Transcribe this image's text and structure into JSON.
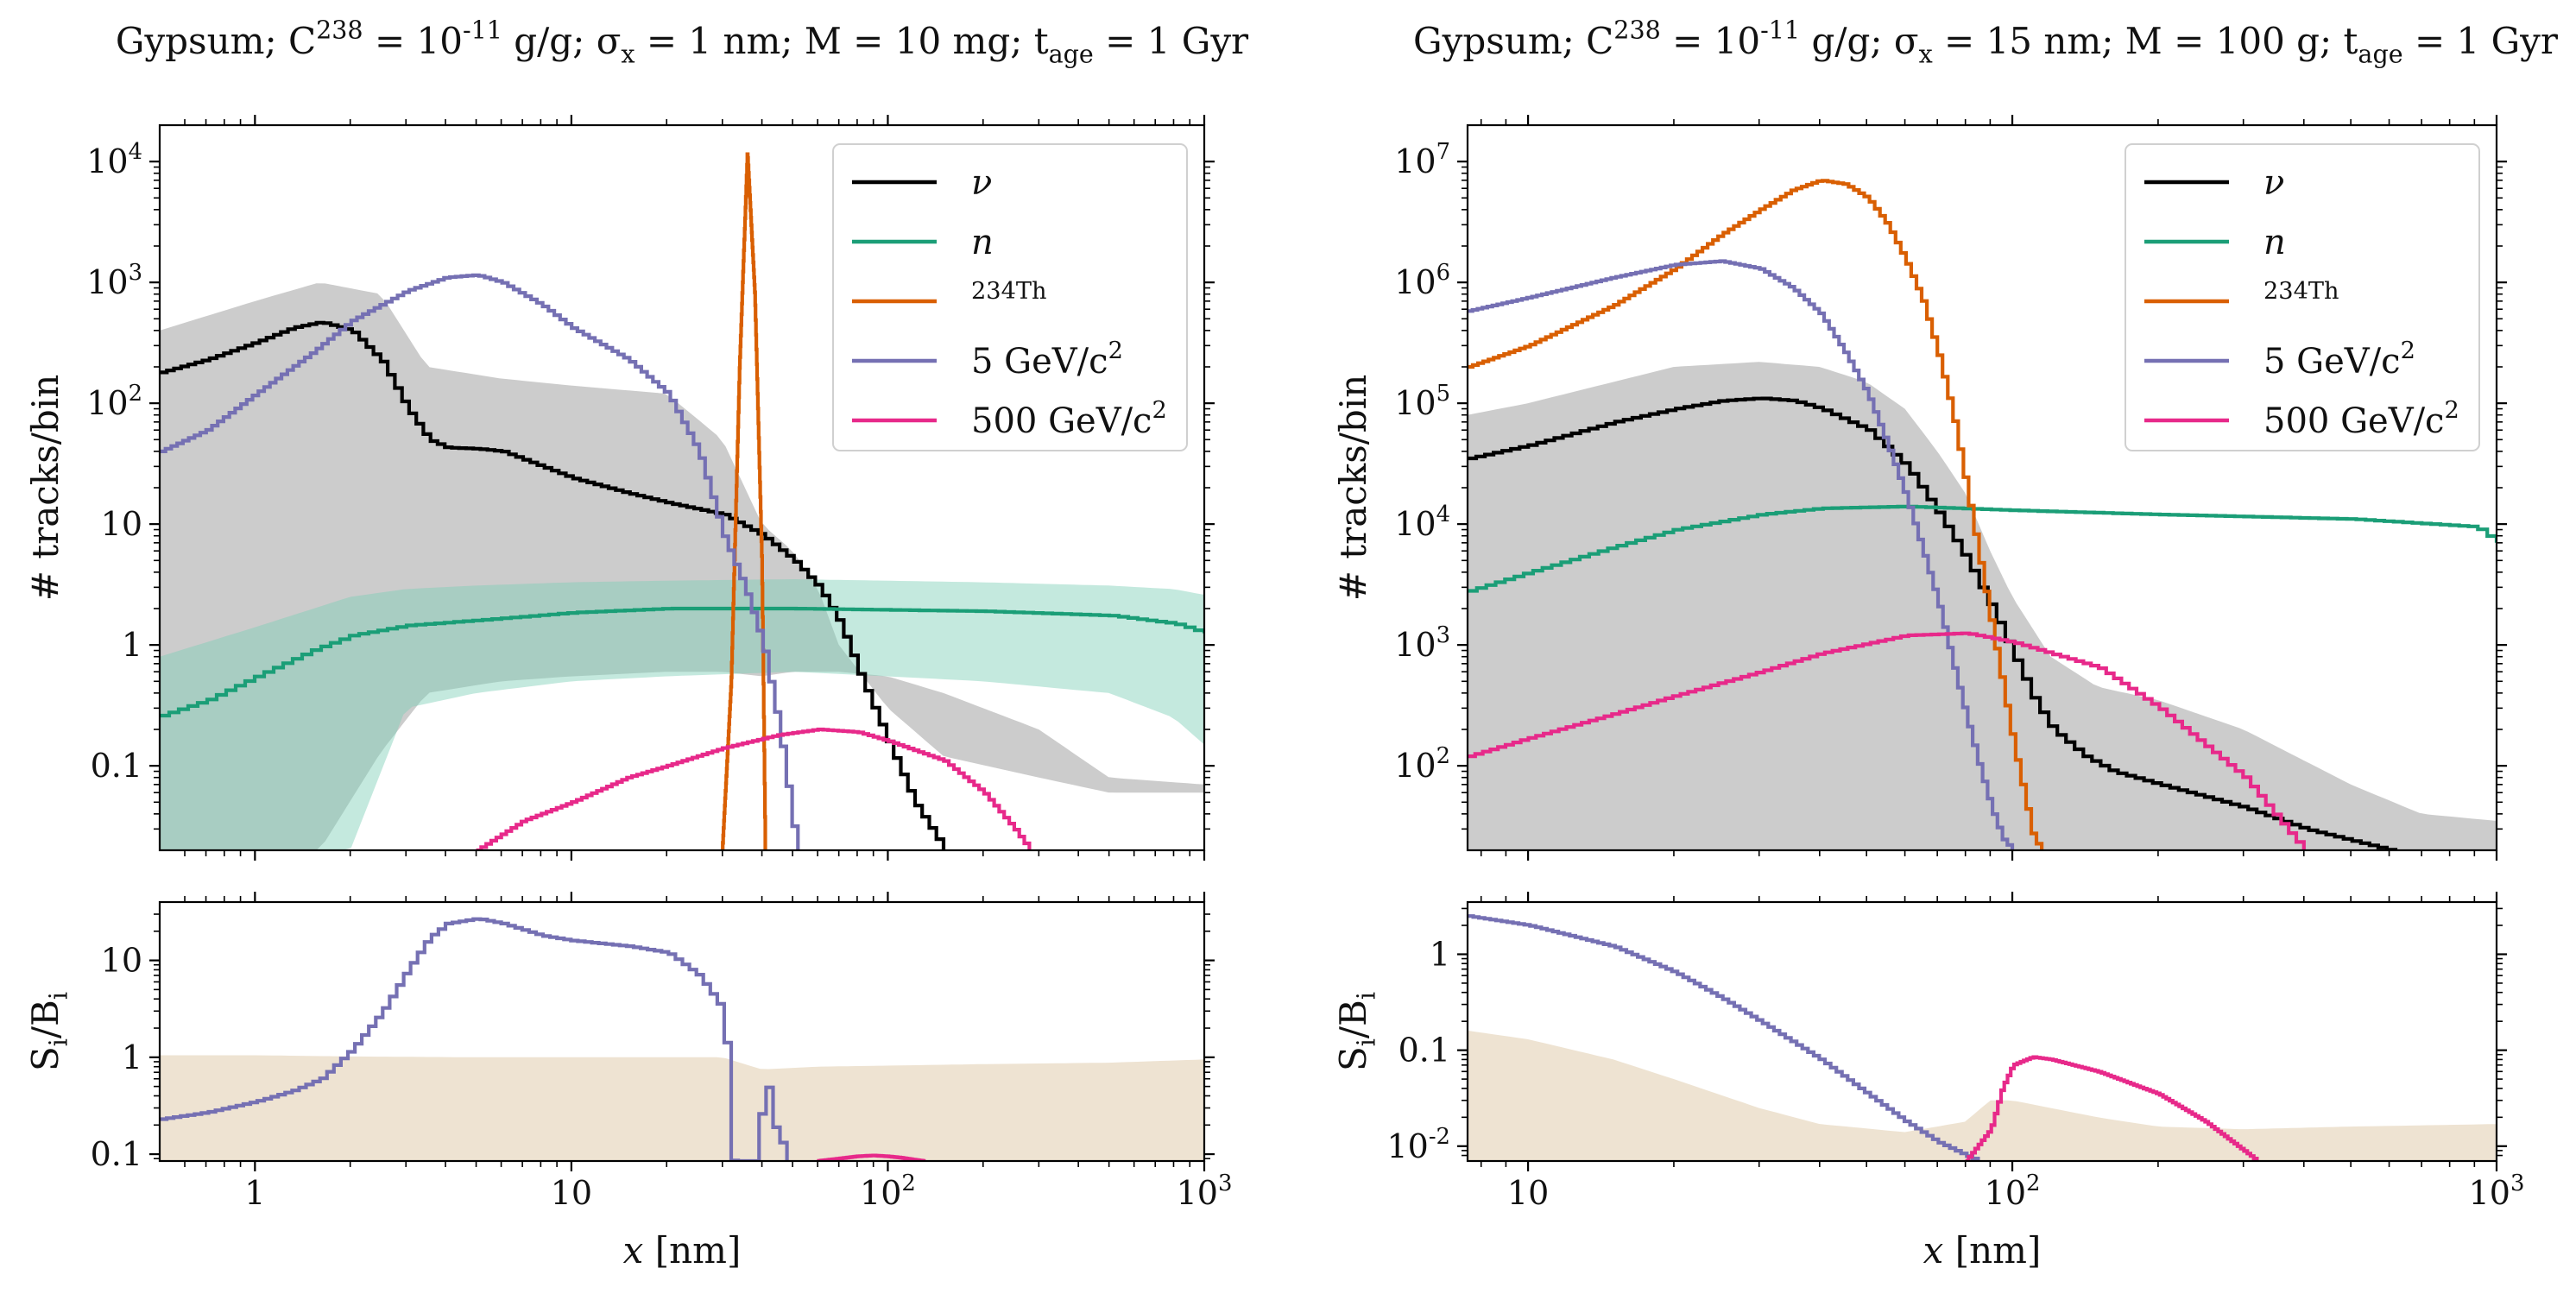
{
  "chart_data": [
    {
      "id": "left",
      "type": "line",
      "title": "Gypsum; C^238 = 10^-11 g/g; σ_x = 1 nm; M = 10 mg; t_age = 1 Gyr",
      "xscale": "log",
      "xlim": [
        0.5,
        1000
      ],
      "xlabel": "x [nm]",
      "x_ticks": [
        1,
        10,
        100,
        1000
      ],
      "x_tick_labels": [
        "1",
        "10",
        "10^2",
        "10^3"
      ],
      "top": {
        "ylabel": "# tracks/bin",
        "yscale": "log",
        "ylim": [
          0.02,
          20000
        ],
        "y_ticks": [
          0.1,
          1,
          10,
          100,
          1000,
          10000
        ],
        "y_tick_labels": [
          "0.1",
          "1",
          "10",
          "10^2",
          "10^3",
          "10^4"
        ],
        "legend_position": "top-right",
        "bands": [
          {
            "name": "ν uncertainty",
            "color": "#c9c9c9",
            "x": [
              0.5,
              1,
              1.6,
              2.5,
              3.5,
              6,
              10,
              20,
              30,
              40,
              50,
              60,
              70,
              100,
              150,
              300,
              500,
              1000
            ],
            "lower": [
              0.02,
              0.02,
              0.02,
              0.13,
              0.4,
              0.5,
              0.55,
              0.6,
              0.6,
              0.55,
              0.6,
              0.6,
              0.6,
              0.55,
              0.4,
              0.2,
              0.08,
              0.07
            ],
            "upper": [
              400,
              700,
              1000,
              800,
              200,
              160,
              140,
              120,
              50,
              10,
              6,
              3,
              1,
              0.3,
              0.12,
              0.08,
              0.06,
              0.06
            ]
          },
          {
            "name": "n uncertainty",
            "color": "#7ccfb5",
            "x": [
              0.5,
              1,
              2,
              3,
              5,
              10,
              20,
              50,
              100,
              200,
              500,
              800,
              1000
            ],
            "lower": [
              0.02,
              0.02,
              0.02,
              0.3,
              0.4,
              0.5,
              0.55,
              0.6,
              0.55,
              0.5,
              0.4,
              0.25,
              0.15
            ],
            "upper": [
              0.8,
              1.4,
              2.5,
              2.9,
              3.1,
              3.3,
              3.4,
              3.5,
              3.4,
              3.3,
              3.1,
              2.9,
              2.6
            ]
          }
        ],
        "series": [
          {
            "name": "ν",
            "color": "#000000",
            "x": [
              0.5,
              0.7,
              1,
              1.3,
              1.6,
              2,
              2.5,
              3,
              3.5,
              4,
              5,
              6,
              8,
              10,
              15,
              20,
              30,
              40,
              50,
              60,
              70,
              80,
              100,
              120,
              150
            ],
            "y": [
              180,
              230,
              320,
              420,
              470,
              400,
              220,
              90,
              50,
              43,
              42,
              40,
              30,
              24,
              18,
              15,
              12,
              8,
              5,
              3,
              1.5,
              0.6,
              0.15,
              0.05,
              0.02
            ]
          },
          {
            "name": "n",
            "color": "#1b9e77",
            "x": [
              0.5,
              0.7,
              1,
              1.5,
              2,
              3,
              5,
              10,
              20,
              50,
              100,
              200,
              500,
              800,
              1000
            ],
            "y": [
              0.26,
              0.35,
              0.55,
              0.9,
              1.2,
              1.45,
              1.6,
              1.85,
              2.0,
              2.0,
              1.95,
              1.9,
              1.75,
              1.5,
              1.25
            ]
          },
          {
            "name": "^234Th",
            "color": "#d95f02",
            "x": [
              30,
              32,
              34,
              36,
              38,
              40,
              41
            ],
            "y": [
              0.02,
              0.5,
              200,
              12000,
              800,
              5,
              0.02
            ]
          },
          {
            "name": "5 GeV/c^2",
            "color": "#7570b3",
            "x": [
              0.5,
              0.7,
              1,
              1.5,
              2,
              3,
              4,
              5,
              6,
              8,
              10,
              15,
              20,
              25,
              30,
              35,
              40,
              45,
              50,
              52
            ],
            "y": [
              40,
              60,
              120,
              260,
              480,
              850,
              1100,
              1150,
              1000,
              650,
              420,
              230,
              120,
              40,
              8,
              3,
              1,
              0.2,
              0.03,
              0.02
            ]
          },
          {
            "name": "500 GeV/c^2",
            "color": "#e7298a",
            "x": [
              5,
              7,
              10,
              15,
              20,
              30,
              45,
              60,
              80,
              100,
              150,
              200,
              250,
              280
            ],
            "y": [
              0.02,
              0.035,
              0.05,
              0.08,
              0.1,
              0.14,
              0.18,
              0.2,
              0.19,
              0.16,
              0.11,
              0.06,
              0.03,
              0.02
            ]
          }
        ]
      },
      "bottom": {
        "ylabel": "S_i/B_i",
        "yscale": "log",
        "ylim": [
          0.085,
          40
        ],
        "y_ticks": [
          0.1,
          1,
          10
        ],
        "y_tick_labels": [
          "0.1",
          "1",
          "10"
        ],
        "bands": [
          {
            "name": "background ratio",
            "color": "#eee3d2",
            "x": [
              0.5,
              1,
              2,
              5,
              10,
              20,
              30,
              40,
              60,
              100,
              200,
              500,
              1000
            ],
            "upper": [
              1.05,
              1.05,
              1.02,
              1.0,
              1.0,
              1.0,
              1.0,
              0.75,
              0.8,
              0.82,
              0.85,
              0.88,
              0.95
            ]
          }
        ],
        "series": [
          {
            "name": "5 GeV/c^2",
            "color": "#7570b3",
            "x": [
              0.5,
              0.7,
              1,
              1.3,
              1.6,
              2,
              2.5,
              3,
              3.5,
              4,
              5,
              6,
              8,
              10,
              15,
              20,
              25,
              30,
              32,
              34,
              38,
              40,
              41,
              43,
              45,
              47,
              48
            ],
            "y": [
              0.23,
              0.27,
              0.35,
              0.45,
              0.6,
              1.2,
              3.0,
              8.0,
              17.0,
              24.0,
              27.0,
              24.0,
              18.0,
              16.0,
              14.0,
              12.0,
              7.0,
              3.0,
              0.085,
              0.085,
              0.085,
              0.55,
              0.55,
              0.2,
              0.15,
              0.1,
              0.085
            ]
          },
          {
            "name": "500 GeV/c^2",
            "color": "#e7298a",
            "x": [
              60,
              70,
              80,
              90,
              100,
              110,
              120,
              130
            ],
            "y": [
              0.085,
              0.09,
              0.095,
              0.097,
              0.095,
              0.092,
              0.088,
              0.085
            ]
          }
        ]
      }
    },
    {
      "id": "right",
      "type": "line",
      "title": "Gypsum; C^238 = 10^-11 g/g; σ_x = 15 nm; M = 100 g; t_age = 1 Gyr",
      "xscale": "log",
      "xlim": [
        7.5,
        1000
      ],
      "xlabel": "x [nm]",
      "x_ticks": [
        10,
        100,
        1000
      ],
      "x_tick_labels": [
        "10",
        "10^2",
        "10^3"
      ],
      "top": {
        "ylabel": "# tracks/bin",
        "yscale": "log",
        "ylim": [
          20,
          20000000
        ],
        "y_ticks": [
          100,
          1000,
          10000,
          100000,
          1000000,
          10000000
        ],
        "y_tick_labels": [
          "10^2",
          "10^3",
          "10^4",
          "10^5",
          "10^6",
          "10^7"
        ],
        "legend_position": "top-right",
        "bands": [
          {
            "name": "ν uncertainty",
            "color": "#c9c9c9",
            "x": [
              7.5,
              10,
              15,
              20,
              30,
              40,
              50,
              60,
              70,
              80,
              90,
              100,
              120,
              150,
              200,
              300,
              500,
              700,
              1000
            ],
            "lower": [
              20,
              20,
              20,
              20,
              20,
              20,
              20,
              20,
              20,
              20,
              20,
              20,
              20,
              20,
              20,
              20,
              20,
              20,
              20
            ],
            "upper": [
              80000,
              100000,
              150000,
              200000,
              220000,
              200000,
              150000,
              90000,
              40000,
              18000,
              6000,
              2500,
              800,
              450,
              350,
              200,
              70,
              40,
              35
            ]
          }
        ],
        "series": [
          {
            "name": "ν",
            "color": "#000000",
            "x": [
              7.5,
              10,
              15,
              20,
              25,
              30,
              35,
              40,
              50,
              60,
              70,
              80,
              90,
              100,
              110,
              120,
              140,
              160,
              200,
              250,
              300,
              400,
              500,
              600,
              700
            ],
            "y": [
              35000,
              45000,
              70000,
              90000,
              105000,
              110000,
              105000,
              90000,
              60000,
              30000,
              12000,
              5000,
              2000,
              800,
              350,
              200,
              120,
              90,
              70,
              55,
              45,
              30,
              24,
              20,
              18
            ]
          },
          {
            "name": "n",
            "color": "#1b9e77",
            "x": [
              7.5,
              10,
              15,
              20,
              30,
              40,
              60,
              100,
              200,
              500,
              900,
              1000
            ],
            "y": [
              2800,
              4000,
              6500,
              9000,
              12000,
              13500,
              14000,
              13000,
              12000,
              11000,
              9500,
              7000
            ]
          },
          {
            "name": "^234Th",
            "color": "#d95f02",
            "x": [
              7.5,
              10,
              15,
              20,
              25,
              30,
              35,
              40,
              45,
              50,
              55,
              60,
              65,
              70,
              75,
              80,
              90,
              100,
              110,
              115
            ],
            "y": [
              200000,
              300000,
              650000,
              1300000,
              2500000,
              4000000,
              5800000,
              7000000,
              6500000,
              5000000,
              3000000,
              1500000,
              700000,
              250000,
              80000,
              20000,
              1500,
              150,
              25,
              20
            ]
          },
          {
            "name": "5 GeV/c^2",
            "color": "#7570b3",
            "x": [
              7.5,
              10,
              15,
              20,
              25,
              30,
              35,
              40,
              45,
              50,
              55,
              60,
              65,
              70,
              75,
              80,
              85,
              90,
              95,
              100
            ],
            "y": [
              580000,
              750000,
              1100000,
              1400000,
              1500000,
              1300000,
              900000,
              550000,
              260000,
              120000,
              45000,
              17000,
              6000,
              2200,
              700,
              250,
              100,
              45,
              25,
              20
            ]
          },
          {
            "name": "500 GeV/c^2",
            "color": "#e7298a",
            "x": [
              7.5,
              10,
              15,
              20,
              30,
              40,
              60,
              80,
              100,
              150,
              200,
              300,
              380,
              400
            ],
            "y": [
              120,
              170,
              270,
              380,
              600,
              850,
              1200,
              1250,
              1050,
              650,
              300,
              80,
              25,
              20
            ]
          }
        ]
      },
      "bottom": {
        "ylabel": "S_i/B_i",
        "yscale": "log",
        "ylim": [
          0.007,
          3.5
        ],
        "y_ticks": [
          0.01,
          0.1,
          1
        ],
        "y_tick_labels": [
          "10^-2",
          "0.1",
          "1"
        ],
        "bands": [
          {
            "name": "background ratio",
            "color": "#eee3d2",
            "x": [
              7.5,
              10,
              15,
              20,
              30,
              40,
              60,
              80,
              90,
              100,
              150,
              200,
              300,
              500,
              1000
            ],
            "upper": [
              0.16,
              0.13,
              0.08,
              0.05,
              0.025,
              0.017,
              0.014,
              0.018,
              0.03,
              0.03,
              0.02,
              0.016,
              0.015,
              0.016,
              0.017
            ]
          }
        ],
        "series": [
          {
            "name": "5 GeV/c^2",
            "color": "#7570b3",
            "x": [
              7.5,
              10,
              15,
              20,
              25,
              30,
              40,
              50,
              60,
              70,
              80,
              85
            ],
            "y": [
              2.5,
              2.0,
              1.2,
              0.65,
              0.35,
              0.2,
              0.08,
              0.035,
              0.018,
              0.011,
              0.008,
              0.007
            ]
          },
          {
            "name": "500 GeV/c^2",
            "color": "#e7298a",
            "x": [
              80,
              90,
              95,
              100,
              110,
              120,
              150,
              200,
              250,
              300,
              320
            ],
            "y": [
              0.007,
              0.015,
              0.04,
              0.07,
              0.085,
              0.08,
              0.06,
              0.035,
              0.018,
              0.009,
              0.007
            ]
          }
        ]
      }
    }
  ]
}
